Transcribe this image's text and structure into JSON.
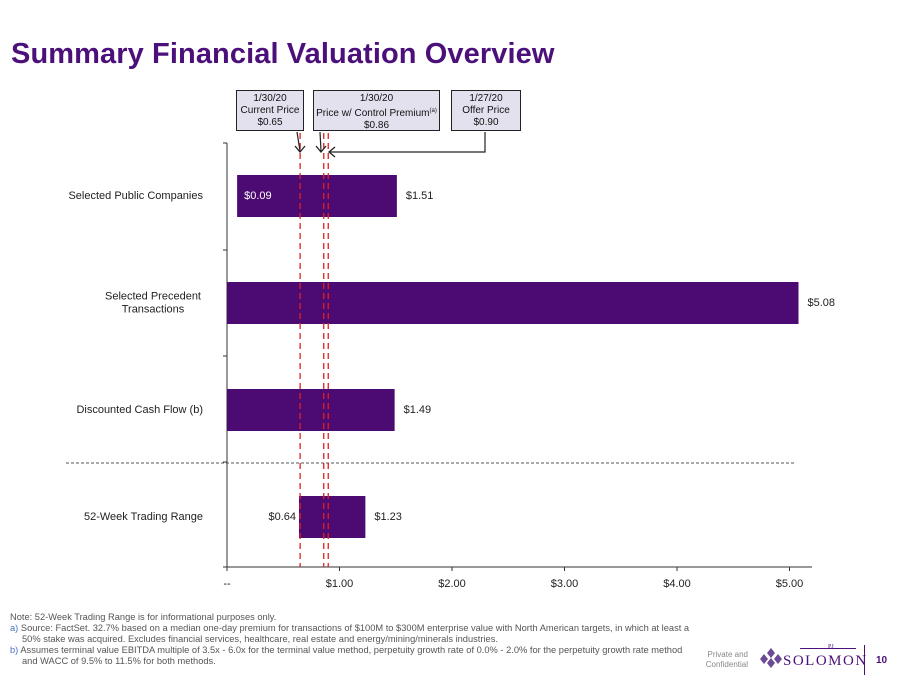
{
  "title": "Summary Financial Valuation Overview",
  "callouts": [
    {
      "date": "1/30/20",
      "label": "Current Price",
      "sup": "",
      "price": "$0.65"
    },
    {
      "date": "1/30/20",
      "label": "Price w/ Control Premium",
      "sup": "(a)",
      "price": "$0.86"
    },
    {
      "date": "1/27/20",
      "label": "Offer Price",
      "sup": "",
      "price": "$0.90"
    }
  ],
  "chart_data": {
    "type": "bar",
    "orientation": "horizontal",
    "categories": [
      "Selected Public Companies",
      "Selected Precedent\nTransactions",
      "Discounted Cash Flow (b)",
      "52-Week Trading Range"
    ],
    "ranges": [
      {
        "low": 0.09,
        "high": 1.51,
        "low_label": "$0.09",
        "high_label": "$1.51"
      },
      {
        "low": 0.0,
        "high": 5.08,
        "low_label": "",
        "high_label": "$5.08"
      },
      {
        "low": 0.0,
        "high": 1.49,
        "low_label": "",
        "high_label": "$1.49"
      },
      {
        "low": 0.64,
        "high": 1.23,
        "low_label": "$0.64",
        "high_label": "$1.23"
      }
    ],
    "reference_lines": [
      0.65,
      0.86,
      0.9
    ],
    "xlim": [
      0,
      5.2
    ],
    "xticks": [
      0,
      1,
      2,
      3,
      4,
      5
    ],
    "xtick_labels": [
      "--",
      "$1.00",
      "$2.00",
      "$3.00",
      "$4.00",
      "$5.00"
    ],
    "colors": {
      "bar": "#4b0b73",
      "ref_line": "#e02020",
      "axis": "#333333",
      "separator": "#555555"
    }
  },
  "notes": {
    "note": "Note: 52-Week Trading Range is for informational purposes only.",
    "a_mark": "a)",
    "a_text": "Source: FactSet. 32.7% based on a median one-day premium for transactions of $100M to $300M enterprise value with North American targets, in which at least a 50% stake was acquired. Excludes financial services, healthcare, real estate and energy/mining/minerals industries.",
    "b_mark": "b)",
    "b_text": "Assumes terminal value EBITDA multiple of 3.5x - 6.0x for the terminal value method, perpetuity growth rate of 0.0% - 2.0% for the perpetuity growth rate method and WACC of 9.5% to 11.5% for both methods."
  },
  "footer": {
    "private": "Private and Confidential",
    "logo_pj": "PJ",
    "logo_text": "SOLOMON",
    "page_number": "10"
  },
  "colors": {
    "brand": "#4b1079",
    "callout_bg": "#e4e1ef"
  }
}
